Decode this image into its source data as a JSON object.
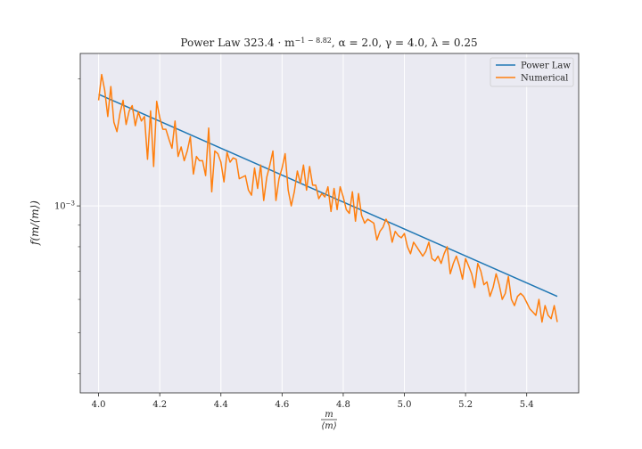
{
  "chart_data": {
    "type": "line",
    "title": {
      "prefix": "Power Law  323.4 · m",
      "exponent": "−1 − 8.82",
      "suffix": ", α = 2.0, γ = 4.0, λ = 0.25"
    },
    "xlabel": {
      "numerator": "m",
      "denominator": "⟨m⟩"
    },
    "ylabel": "f(m/⟨m⟩)",
    "xlim": [
      3.94,
      5.57
    ],
    "ylim": [
      0.00036,
      0.0023
    ],
    "y_scale": "log",
    "grid": true,
    "legend": "top-right",
    "x_ticks": [
      {
        "value": 4.0,
        "label": "4.0"
      },
      {
        "value": 4.2,
        "label": "4.2"
      },
      {
        "value": 4.4,
        "label": "4.4"
      },
      {
        "value": 4.6,
        "label": "4.6"
      },
      {
        "value": 4.8,
        "label": "4.8"
      },
      {
        "value": 5.0,
        "label": "5.0"
      },
      {
        "value": 5.2,
        "label": "5.2"
      },
      {
        "value": 5.4,
        "label": "5.4"
      }
    ],
    "y_tick_major": {
      "value": 0.001,
      "base": "10",
      "exponent": "−3"
    },
    "y_minor_ticks": [
      0.0004,
      0.0005,
      0.0006,
      0.0007,
      0.0008,
      0.0009,
      0.002
    ],
    "series": [
      {
        "name": "Power Law",
        "color": "#1f77b4",
        "x": [
          4.0,
          5.5
        ],
        "y": [
          0.00184,
          0.00061
        ]
      },
      {
        "name": "Numerical",
        "color": "#ff7f0e",
        "x": [
          4.0,
          4.01,
          4.02,
          4.03,
          4.04,
          4.05,
          4.06,
          4.07,
          4.08,
          4.09,
          4.1,
          4.11,
          4.12,
          4.13,
          4.14,
          4.15,
          4.16,
          4.17,
          4.18,
          4.19,
          4.2,
          4.21,
          4.22,
          4.23,
          4.24,
          4.25,
          4.26,
          4.27,
          4.28,
          4.29,
          4.3,
          4.31,
          4.32,
          4.33,
          4.34,
          4.35,
          4.36,
          4.37,
          4.38,
          4.39,
          4.4,
          4.41,
          4.42,
          4.43,
          4.44,
          4.45,
          4.46,
          4.47,
          4.48,
          4.49,
          4.5,
          4.51,
          4.52,
          4.53,
          4.54,
          4.55,
          4.56,
          4.57,
          4.58,
          4.59,
          4.6,
          4.61,
          4.62,
          4.63,
          4.64,
          4.65,
          4.66,
          4.67,
          4.68,
          4.69,
          4.7,
          4.71,
          4.72,
          4.73,
          4.74,
          4.75,
          4.76,
          4.77,
          4.78,
          4.79,
          4.8,
          4.81,
          4.82,
          4.83,
          4.84,
          4.85,
          4.86,
          4.87,
          4.88,
          4.89,
          4.9,
          4.91,
          4.92,
          4.93,
          4.94,
          4.95,
          4.96,
          4.97,
          4.98,
          4.99,
          5.0,
          5.01,
          5.02,
          5.03,
          5.04,
          5.05,
          5.06,
          5.07,
          5.08,
          5.09,
          5.1,
          5.11,
          5.12,
          5.13,
          5.14,
          5.15,
          5.16,
          5.17,
          5.18,
          5.19,
          5.2,
          5.21,
          5.22,
          5.23,
          5.24,
          5.25,
          5.26,
          5.27,
          5.28,
          5.29,
          5.3,
          5.31,
          5.32,
          5.33,
          5.34,
          5.35,
          5.36,
          5.37,
          5.38,
          5.39,
          5.4,
          5.41,
          5.42,
          5.43,
          5.44,
          5.45,
          5.46,
          5.47,
          5.48,
          5.49,
          5.5
        ],
        "y": [
          0.00178,
          0.00205,
          0.00188,
          0.00163,
          0.00192,
          0.00158,
          0.0015,
          0.00166,
          0.00178,
          0.00156,
          0.00168,
          0.00173,
          0.00155,
          0.00167,
          0.00159,
          0.00163,
          0.00129,
          0.00168,
          0.00124,
          0.00177,
          0.00162,
          0.00152,
          0.00152,
          0.00144,
          0.00137,
          0.00159,
          0.00131,
          0.00138,
          0.00128,
          0.00135,
          0.00146,
          0.00119,
          0.00131,
          0.00128,
          0.00128,
          0.00118,
          0.00153,
          0.00108,
          0.00135,
          0.00133,
          0.00127,
          0.00114,
          0.00134,
          0.00127,
          0.0013,
          0.00129,
          0.00116,
          0.00117,
          0.00118,
          0.00109,
          0.00106,
          0.00123,
          0.0011,
          0.00125,
          0.00103,
          0.00117,
          0.00125,
          0.00135,
          0.00103,
          0.00116,
          0.00123,
          0.00133,
          0.00109,
          0.001,
          0.00108,
          0.00121,
          0.00113,
          0.00125,
          0.00109,
          0.00124,
          0.00112,
          0.00112,
          0.00104,
          0.00107,
          0.00105,
          0.00111,
          0.00097,
          0.0011,
          0.00098,
          0.00111,
          0.00105,
          0.00098,
          0.00096,
          0.00108,
          0.00092,
          0.00107,
          0.00095,
          0.00091,
          0.00093,
          0.00092,
          0.00091,
          0.00083,
          0.00087,
          0.00089,
          0.00093,
          0.0009,
          0.00082,
          0.00087,
          0.00085,
          0.00084,
          0.00086,
          0.0008,
          0.00077,
          0.00082,
          0.0008,
          0.00078,
          0.00076,
          0.00078,
          0.00082,
          0.00075,
          0.00074,
          0.00076,
          0.00073,
          0.00077,
          0.0008,
          0.00069,
          0.00073,
          0.00076,
          0.00072,
          0.00067,
          0.00075,
          0.00072,
          0.00069,
          0.00064,
          0.00073,
          0.0007,
          0.00065,
          0.00066,
          0.00061,
          0.00064,
          0.00069,
          0.00065,
          0.0006,
          0.00062,
          0.00068,
          0.0006,
          0.00058,
          0.00061,
          0.00062,
          0.00061,
          0.00059,
          0.00057,
          0.00056,
          0.00055,
          0.0006,
          0.00053,
          0.00058,
          0.00055,
          0.00054,
          0.00058,
          0.00053
        ]
      }
    ]
  }
}
